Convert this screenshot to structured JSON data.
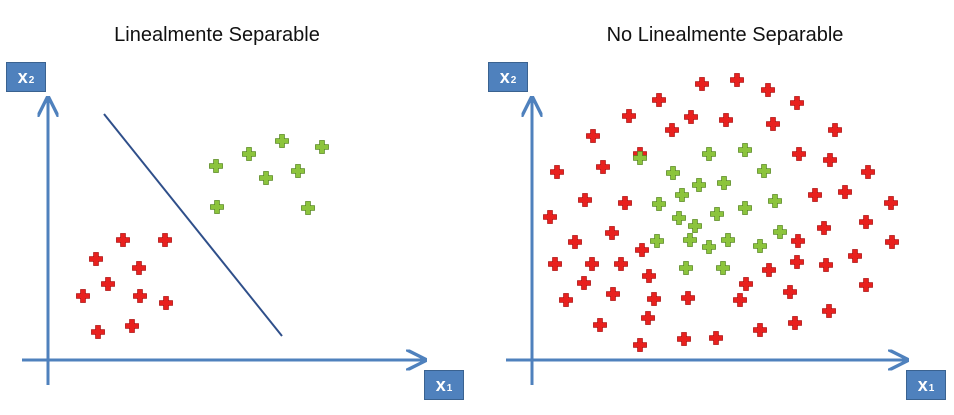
{
  "panels": [
    {
      "title": "Linealmente Separable",
      "x_axis": {
        "label": "x",
        "sub": "1"
      },
      "y_axis": {
        "label": "x",
        "sub": "2"
      }
    },
    {
      "title": "No Linealmente Separable",
      "x_axis": {
        "label": "x",
        "sub": "1"
      },
      "y_axis": {
        "label": "x",
        "sub": "2"
      }
    }
  ],
  "colors": {
    "axis": "#4f81bd",
    "boundary": "#2f4f8a",
    "red_marker": "#e8201e",
    "green_marker": "#8cc43c",
    "marker_outline_red": "#b01010",
    "marker_outline_green": "#5a8a22"
  },
  "icons": {
    "marker": "plus-icon"
  }
}
